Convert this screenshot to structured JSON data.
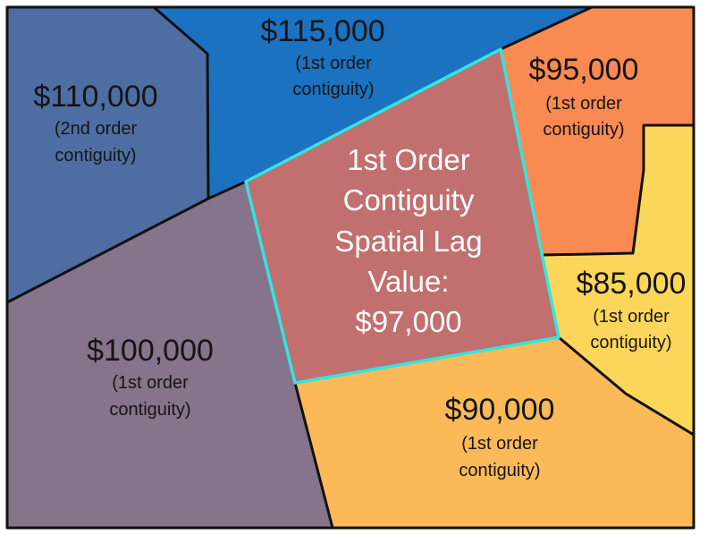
{
  "regions": [
    {
      "id": "r110",
      "value": "$110,000",
      "note": [
        "(2nd order",
        "contiguity)"
      ],
      "color": "#4e6ea3"
    },
    {
      "id": "r115",
      "value": "$115,000",
      "note": [
        "(1st order",
        "contiguity)"
      ],
      "color": "#1a72c1"
    },
    {
      "id": "r95",
      "value": "$95,000",
      "note": [
        "(1st order",
        "contiguity)"
      ],
      "color": "#f98a52"
    },
    {
      "id": "r85",
      "value": "$85,000",
      "note": [
        "(1st order",
        "contiguity)"
      ],
      "color": "#fbd65a"
    },
    {
      "id": "r90",
      "value": "$90,000",
      "note": [
        "(1st order",
        "contiguity)"
      ],
      "color": "#fbb958"
    },
    {
      "id": "r100",
      "value": "$100,000",
      "note": [
        "(1st order",
        "contiguity)"
      ],
      "color": "#86738c"
    }
  ],
  "center": {
    "lines": [
      "1st Order",
      "Contiguity",
      "Spatial Lag",
      "Value:",
      "$97,000"
    ],
    "color": "#c26f6f",
    "outline_color": "#2fe6e0"
  },
  "border_color": "#111111"
}
